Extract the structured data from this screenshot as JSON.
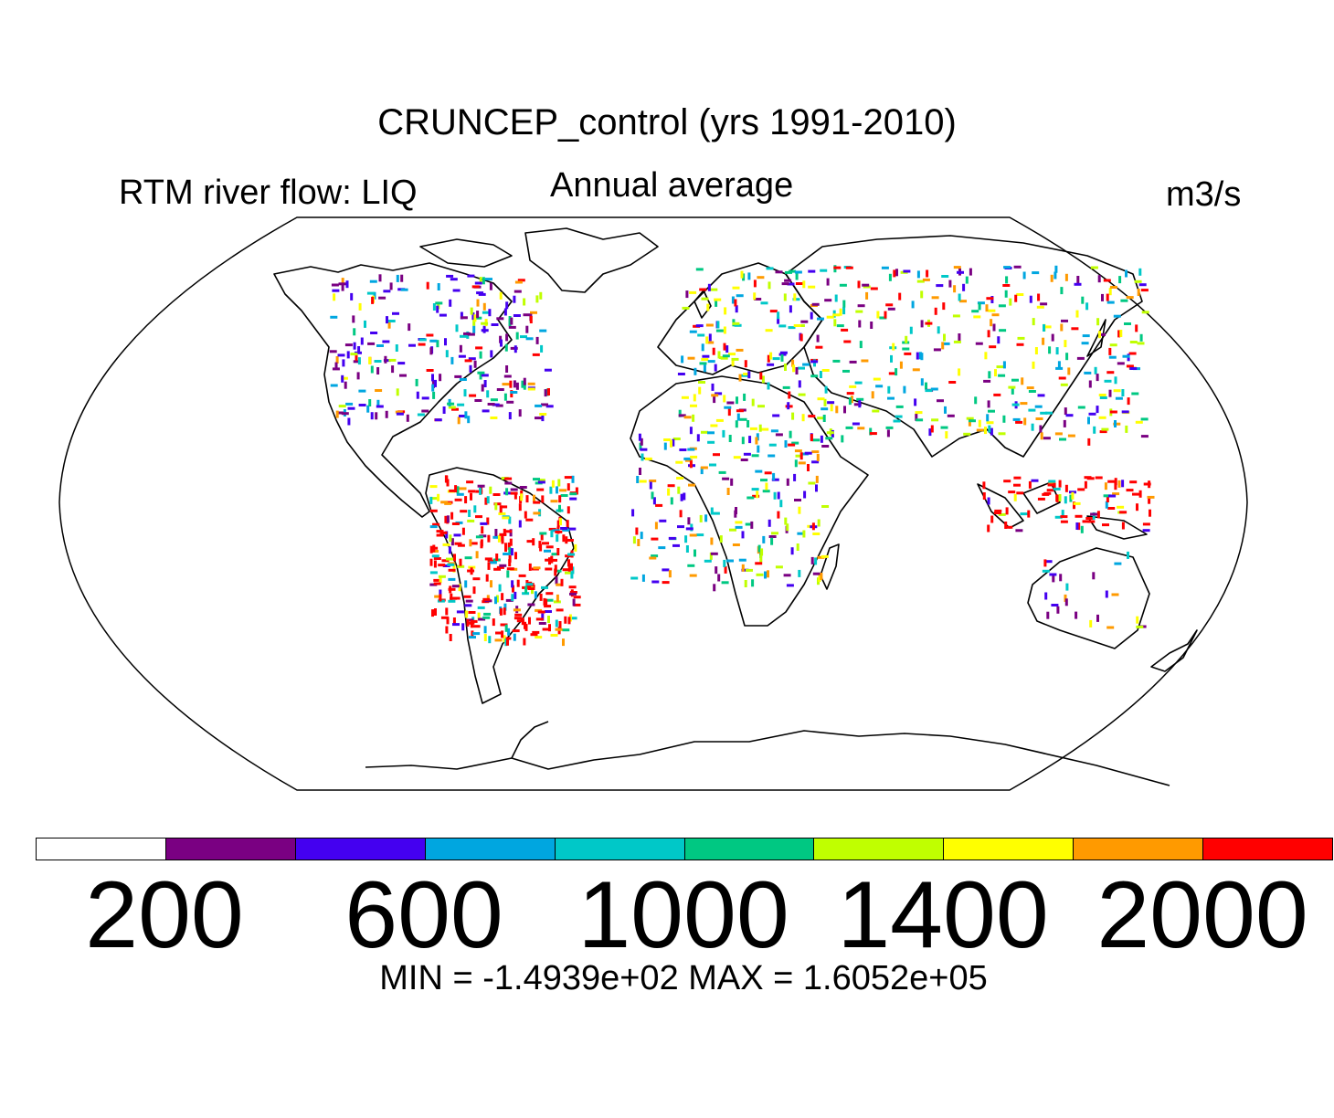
{
  "title": "CRUNCEP_control (yrs 1991-2010)",
  "variable_label": "RTM river flow: LIQ",
  "period_label": "Annual average",
  "units_label": "m3/s",
  "colorbar": {
    "colors": [
      "#ffffff",
      "#7a0082",
      "#4400f0",
      "#00a6e0",
      "#00c8c8",
      "#00c882",
      "#c0ff00",
      "#ffff00",
      "#ff9a00",
      "#ff0000"
    ],
    "tick_labels": [
      "200",
      "600",
      "1000",
      "1400",
      "2000"
    ]
  },
  "stats_label": "MIN = -1.4939e+02 MAX = 1.6052e+05",
  "map": {
    "projection": "Robinson",
    "river_colors": [
      "#7a0082",
      "#4400f0",
      "#00a6e0",
      "#00c8c8",
      "#00c882",
      "#c0ff00",
      "#ffff00",
      "#ff9a00",
      "#ff0000"
    ]
  }
}
